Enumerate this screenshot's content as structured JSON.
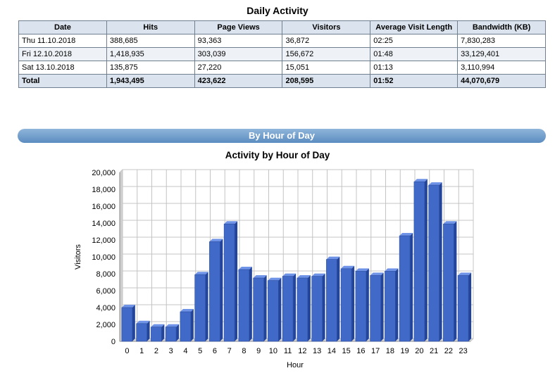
{
  "daily": {
    "title": "Daily Activity",
    "headers": [
      "Date",
      "Hits",
      "Page Views",
      "Visitors",
      "Average Visit Length",
      "Bandwidth (KB)"
    ],
    "rows": [
      [
        "Thu 11.10.2018",
        "388,685",
        "93,363",
        "36,872",
        "02:25",
        "7,830,283"
      ],
      [
        "Fri 12.10.2018",
        "1,418,935",
        "303,039",
        "156,672",
        "01:48",
        "33,129,401"
      ],
      [
        "Sat 13.10.2018",
        "135,875",
        "27,220",
        "15,051",
        "01:13",
        "3,110,994"
      ]
    ],
    "total": [
      "Total",
      "1,943,495",
      "423,622",
      "208,595",
      "01:52",
      "44,070,679"
    ]
  },
  "section": {
    "title": "By Hour of Day"
  },
  "chart_data": {
    "type": "bar",
    "title": "Activity by Hour of Day",
    "xlabel": "Hour",
    "ylabel": "Visitors",
    "ylim": [
      0,
      20000
    ],
    "ytick_labels": [
      "0",
      "2,000",
      "4,000",
      "6,000",
      "8,000",
      "10,000",
      "12,000",
      "14,000",
      "16,000",
      "18,000",
      "20,000"
    ],
    "yticks": [
      0,
      2000,
      4000,
      6000,
      8000,
      10000,
      12000,
      14000,
      16000,
      18000,
      20000
    ],
    "categories": [
      "0",
      "1",
      "2",
      "3",
      "4",
      "5",
      "6",
      "7",
      "8",
      "9",
      "10",
      "11",
      "12",
      "13",
      "14",
      "15",
      "16",
      "17",
      "18",
      "19",
      "20",
      "21",
      "22",
      "23"
    ],
    "values": [
      4000,
      2100,
      1700,
      1700,
      3500,
      7900,
      11800,
      13900,
      8500,
      7500,
      7200,
      7700,
      7500,
      7700,
      9700,
      8600,
      8300,
      7800,
      8300,
      12500,
      18900,
      18500,
      13900,
      7800
    ],
    "grid": true,
    "bar_color": "#4169c8"
  }
}
